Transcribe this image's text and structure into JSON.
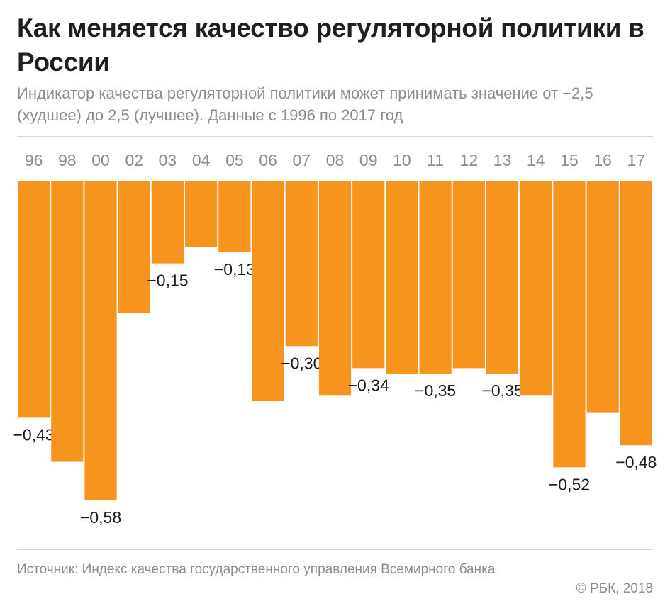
{
  "header": {
    "title": "Как меняется качество регуляторной политики в России",
    "subtitle": "Индикатор качества регуляторной политики может принимать значение от −2,5 (худшее) до 2,5 (лучшее). Данные с 1996 по 2017 год"
  },
  "footer": {
    "source": "Источник: Индекс качества государственного управления Всемирного банка",
    "copyright": "© РБК, 2018"
  },
  "colors": {
    "bar": "#F7941D",
    "year_label": "#8c8c8c",
    "value_label": "#1a1a1a"
  },
  "chart_data": {
    "type": "bar",
    "orientation": "vertical-downward",
    "categories": [
      "96",
      "98",
      "00",
      "02",
      "03",
      "04",
      "05",
      "06",
      "07",
      "08",
      "09",
      "10",
      "11",
      "12",
      "13",
      "14",
      "15",
      "16",
      "17"
    ],
    "values": [
      -0.43,
      -0.51,
      -0.58,
      -0.24,
      -0.15,
      -0.12,
      -0.13,
      -0.4,
      -0.3,
      -0.39,
      -0.34,
      -0.35,
      -0.35,
      -0.34,
      -0.35,
      -0.39,
      -0.52,
      -0.42,
      -0.48
    ],
    "value_labels": [
      "−0,43",
      "",
      "−0,58",
      "",
      "−0,15",
      "",
      "−0,13",
      "",
      "−0,30",
      "",
      "−0,34",
      "",
      "−0,35",
      "",
      "−0,35",
      "",
      "−0,52",
      "",
      "−0,48"
    ],
    "ylim": [
      -0.58,
      0
    ],
    "grid": false,
    "legend": "none"
  }
}
